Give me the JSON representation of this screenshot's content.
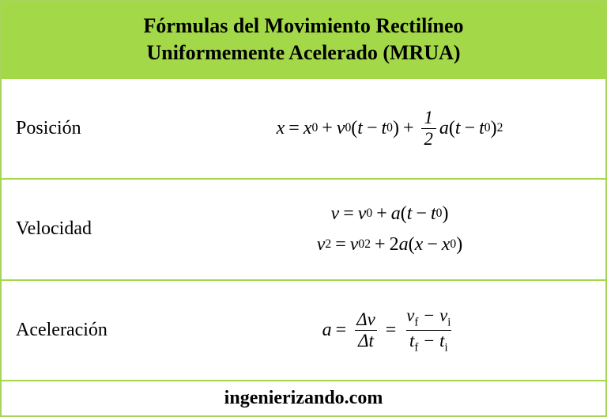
{
  "colors": {
    "border": "#a3d948",
    "header_bg": "#a3d948",
    "background": "#ffffff",
    "text": "#000000"
  },
  "header": {
    "title_line1": "Fórmulas del Movimiento Rectilíneo",
    "title_line2": "Uniformemente Acelerado (MRUA)"
  },
  "rows": {
    "posicion": {
      "label": "Posición"
    },
    "velocidad": {
      "label": "Velocidad"
    },
    "aceleracion": {
      "label": "Aceleración"
    }
  },
  "footer": {
    "text": "ingenierizando.com"
  },
  "typography": {
    "title_size": 26,
    "label_size": 24,
    "formula_size": 24,
    "footer_size": 24
  }
}
